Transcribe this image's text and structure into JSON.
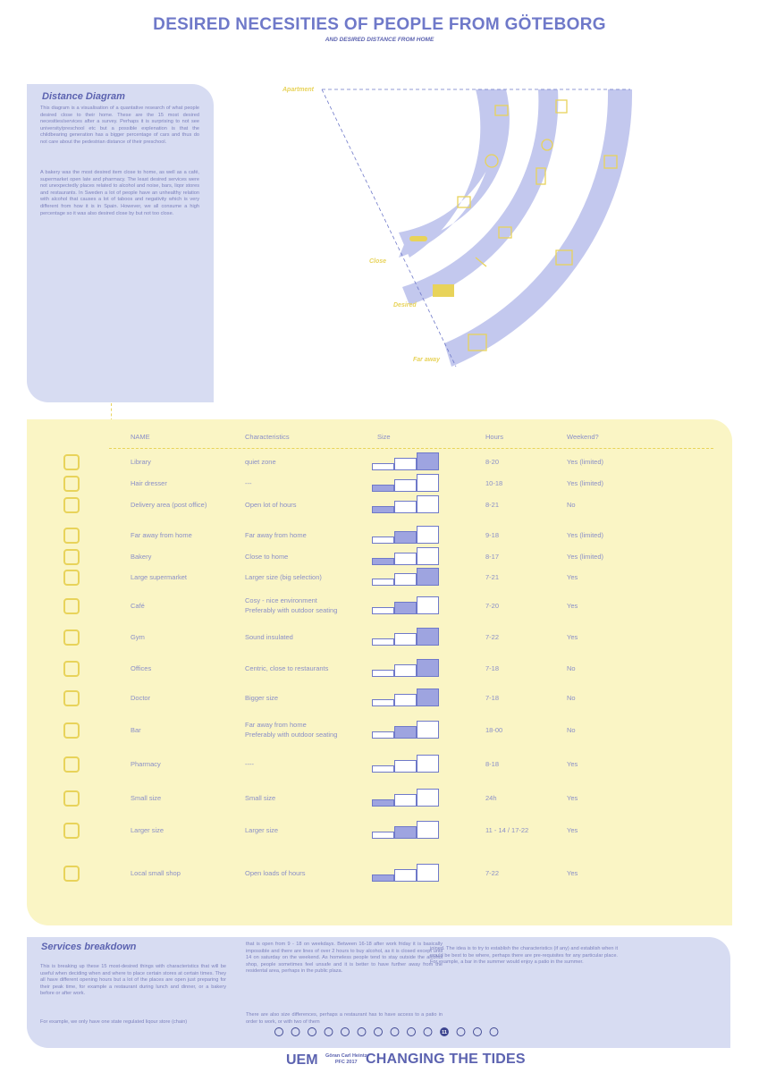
{
  "header": {
    "title": "DESIRED NECESITIES OF PEOPLE FROM GÖTEBORG",
    "subtitle": "AND DESIRED DISTANCE FROM HOME"
  },
  "distance_panel": {
    "heading": "Distance Diagram",
    "p1": "This diagram is a visualisation of a quantative research of what people desired close to their home. These are the 15 most desired necesities/services after a survey. Perhaps it is surprising to not see university/preschool etc but a possible explenation is that the childbearing generation has a bigger percentage of cars and thus do not care about the pedestrian distance of their preschool.",
    "p2": "A bakery was the most desired item close to home, as well as a café, supermarket open late and pharmacy. The least desired services were not unexpectedly places related to alcohol and noise, bars, liqor stores and restaurants. In Sweden a lot of people have an unhealthy relation with alcohol that causes a lot of taboos and negativity which is very different from how it is in Spain. However, we all consume a high percentage so it was also desired close by but not too close."
  },
  "diagram": {
    "labels": {
      "apartment": "Apartment",
      "close": "Close",
      "desired": "Desired",
      "far": "Far away"
    },
    "colors": {
      "band": "#c3c8ee",
      "accent": "#e8d35a"
    }
  },
  "table": {
    "headers": {
      "name": "NAME",
      "characteristics": "Characteristics",
      "size": "Size",
      "hours": "Hours",
      "weekend": "Weekend?"
    },
    "rows": [
      {
        "icon": "library-icon",
        "name": "Library",
        "char": "quiet zone",
        "char2": "",
        "size": 3,
        "hours": "8-20",
        "weekend": "Yes (limited)"
      },
      {
        "icon": "scissors-icon",
        "name": "Hair dresser",
        "char": "---",
        "char2": "",
        "size": 1,
        "hours": "10-18",
        "weekend": "Yes (limited)"
      },
      {
        "icon": "envelope-icon",
        "name": "Delivery area (post office)",
        "char": "Open lot of hours",
        "char2": "",
        "size": 1,
        "hours": "8-21",
        "weekend": "No"
      },
      {
        "icon": "cart-icon",
        "name": "Far away from home",
        "char": "Far away from home",
        "char2": "",
        "size": 2,
        "hours": "9-18",
        "weekend": "Yes (limited)"
      },
      {
        "icon": "bread-icon",
        "name": "Bakery",
        "char": "Close to home",
        "char2": "",
        "size": 1,
        "hours": "8-17",
        "weekend": "Yes (limited)"
      },
      {
        "icon": "supermarket-icon",
        "name": "Large supermarket",
        "char": "Larger size (big selection)",
        "char2": "",
        "size": 3,
        "hours": "7-21",
        "weekend": "Yes"
      },
      {
        "icon": "coffee-icon",
        "name": "Café",
        "char": "Cosy - nice environment",
        "char2": "Preferably with outdoor seating",
        "size": 2,
        "hours": "7-20",
        "weekend": "Yes"
      },
      {
        "icon": "gym-icon",
        "name": "Gym",
        "char": "Sound insulated",
        "char2": "",
        "size": 3,
        "hours": "7-22",
        "weekend": "Yes"
      },
      {
        "icon": "office-icon",
        "name": "Offices",
        "char": "Centric, close to restaurants",
        "char2": "",
        "size": 3,
        "hours": "7-18",
        "weekend": "No"
      },
      {
        "icon": "doctor-icon",
        "name": "Doctor",
        "char": "Bigger size",
        "char2": "",
        "size": 3,
        "hours": "7-18",
        "weekend": "No"
      },
      {
        "icon": "wine-icon",
        "name": "Bar",
        "char": "Far away from home",
        "char2": "Preferably with outdoor seating",
        "size": 2,
        "hours": "18-00",
        "weekend": "No"
      },
      {
        "icon": "pharmacy-icon",
        "name": "Pharmacy",
        "char": "----",
        "char2": "",
        "size": 0,
        "hours": "8-18",
        "weekend": "Yes"
      },
      {
        "icon": "atm-icon",
        "name": "Small size",
        "char": "Small size",
        "char2": "",
        "size": 1,
        "hours": "24h",
        "weekend": "Yes"
      },
      {
        "icon": "cutlery-icon",
        "name": "Larger size",
        "char": "Larger size",
        "char2": "",
        "size": 2,
        "hours": "11 - 14 / 17-22",
        "weekend": "Yes"
      },
      {
        "icon": "shopping-cart-icon",
        "name": "Local small shop",
        "char": "Open loads of hours",
        "char2": "",
        "size": 1,
        "hours": "7-22",
        "weekend": "Yes"
      }
    ]
  },
  "services": {
    "heading": "Services breakdown",
    "c1": "This is breaking up these 15 most-desired things with characteristics that will be useful when deciding when and where to place certain stores at certain times. They all have different opening hours but a lot of the places are open just preparing for their peak time, for example a restaurant during lunch and dinner, or a bakery before or after work.",
    "c1b": "For example, we only have one state regulated liqour store (chain)",
    "c2": "that is open from 9 - 18 on weekdays. Between 16-18 after work friday it is basically impossible and there are lines of over 2 hours to buy alcohol, as it is closed except until 14 on saturday on the weekend. As homeless people tend to stay outside the alcohol shop, people sometimes feel unsafe and it is better to have further away from the residental area, perhaps in the public plaza.",
    "c2b": "There are also size differences, perhaps a restaurant has to have access to a patio in order to work, or with two of them",
    "c3": "joined. The idea is to try to establish the characteristics (if any) and establish when it would be best to be where, perhaps there are pre-requisites for any particular place. For example, a bar in the summer would enjoy a patio in the summer."
  },
  "pager": {
    "current": "11",
    "total": 14,
    "current_index": 10
  },
  "footer": {
    "uem": "UEM",
    "author": "Göran Carl Heintz",
    "pfc": "PFC 2017",
    "project": "CHANGING THE TIDES"
  }
}
